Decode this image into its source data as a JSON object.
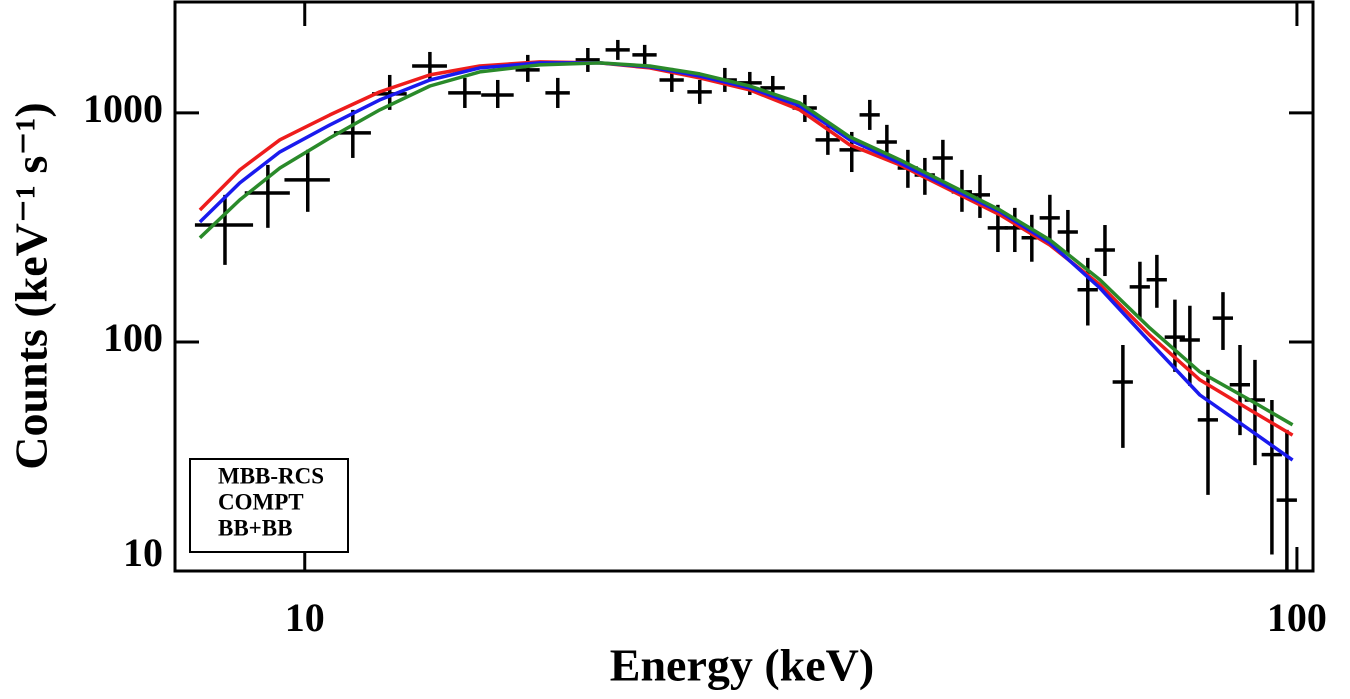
{
  "chart_data": {
    "type": "line",
    "xlabel": "Energy (keV)",
    "ylabel": "Counts (keV⁻¹ s⁻¹)",
    "xscale": "log",
    "yscale": "log",
    "xlim": [
      7.4,
      103.8
    ],
    "ylim": [
      10,
      3050
    ],
    "xticks": [
      10,
      100
    ],
    "yticks": [
      10,
      100,
      1000
    ],
    "legend": "lower left",
    "series": [
      {
        "name": "MBB-RCS",
        "color": "#ee1c1c",
        "x": [
          7.84,
          8.6,
          9.44,
          10.6,
          11.9,
          13.37,
          15.01,
          17.25,
          19.83,
          22.27,
          25.01,
          28.09,
          31.55,
          35.43,
          39.79,
          44.69,
          50.19,
          56.36,
          63.3,
          71.09,
          79.84,
          89.66,
          99
        ],
        "values": [
          377,
          564,
          763,
          980,
          1235,
          1465,
          1603,
          1670,
          1653,
          1572,
          1422,
          1261,
          1031,
          725,
          593,
          461,
          359,
          265,
          178,
          107,
          68.3,
          50.5,
          39.2
        ]
      },
      {
        "name": "COMPT",
        "color": "#1a1aee",
        "x": [
          7.84,
          8.6,
          9.44,
          10.6,
          11.9,
          13.37,
          15.01,
          17.25,
          19.83,
          22.27,
          25.01,
          28.09,
          31.55,
          35.43,
          39.79,
          44.69,
          50.19,
          56.36,
          63.3,
          71.09,
          79.84,
          89.66,
          99
        ],
        "values": [
          334,
          495,
          676,
          887,
          1140,
          1393,
          1572,
          1653,
          1653,
          1588,
          1450,
          1286,
          1073,
          763,
          605,
          471,
          370,
          271,
          172,
          100,
          58.7,
          41.3,
          30.5
        ]
      },
      {
        "name": "BB+BB",
        "color": "#2a8a2a",
        "x": [
          7.84,
          8.6,
          9.44,
          10.6,
          11.9,
          13.37,
          15.01,
          17.25,
          19.83,
          22.27,
          25.01,
          28.09,
          31.55,
          35.43,
          39.79,
          44.69,
          50.19,
          56.36,
          63.3,
          71.09,
          79.84,
          89.66,
          99
        ],
        "values": [
          285,
          417,
          575,
          778,
          1031,
          1311,
          1510,
          1620,
          1653,
          1603,
          1480,
          1311,
          1106,
          786,
          624,
          485,
          377,
          279,
          187,
          115,
          74,
          55.8,
          43.5
        ]
      }
    ],
    "points": {
      "color": "#000000",
      "x": [
        8.31,
        9.18,
        10.07,
        11.18,
        12.18,
        13.37,
        14.5,
        15.65,
        16.78,
        17.99,
        19.29,
        20.68,
        22.01,
        23.44,
        25.01,
        26.51,
        28.09,
        29.63,
        31.92,
        33.67,
        35.59,
        37.11,
        38.61,
        40.54,
        42.17,
        43.97,
        45.96,
        47.92,
        49.96,
        51.96,
        54.05,
        56.36,
        58.77,
        61.55,
        64.05,
        66.77,
        69.46,
        72.25,
        75.34,
        78.0,
        81.35,
        84.23,
        87.62,
        90.72,
        94.36,
        97.7
      ],
      "xerr": [
        0.56,
        0.48,
        0.53,
        0.48,
        0.49,
        0.54,
        0.55,
        0.59,
        0.47,
        0.51,
        0.54,
        0.58,
        0.62,
        0.66,
        0.71,
        0.75,
        0.79,
        0.84,
        0.9,
        0.95,
        1.0,
        0.87,
        0.91,
        0.95,
        0.99,
        1.03,
        1.08,
        1.13,
        1.17,
        1.22,
        1.27,
        1.32,
        1.38,
        1.45,
        1.5,
        1.57,
        1.63,
        1.7,
        1.77,
        1.83,
        1.91,
        1.98,
        2.06,
        2.13,
        2.22,
        2.3
      ],
      "values": [
        324,
        447,
        510,
        818,
        1211,
        1603,
        1223,
        1198,
        1541,
        1223,
        1704,
        1884,
        1792,
        1393,
        1235,
        1393,
        1352,
        1286,
        1051,
        763,
        690,
        980,
        747,
        575,
        536,
        636,
        452,
        439,
        315,
        315,
        285,
        348,
        302,
        169,
        252,
        66.9,
        174,
        187,
        105,
        102,
        45.7,
        127,
        65,
        55.8,
        32.2,
        20.4
      ],
      "y_low": [
        217,
        315,
        370,
        636,
        1031,
        1393,
        1051,
        1051,
        1366,
        1051,
        1510,
        1704,
        1603,
        1235,
        1095,
        1235,
        1198,
        1140,
        913,
        656,
        552,
        843,
        624,
        471,
        439,
        510,
        370,
        348,
        247,
        247,
        224,
        273,
        240,
        118,
        194,
        34.5,
        127,
        141,
        74,
        64.3,
        21.5,
        92.3,
        39.2,
        29.0,
        11.8,
        10
      ],
      "y_high": [
        439,
        593,
        690,
        1031,
        1465,
        1846,
        1422,
        1393,
        1792,
        1422,
        1921,
        2083,
        1982,
        1572,
        1393,
        1572,
        1510,
        1450,
        1198,
        887,
        826,
        1140,
        887,
        690,
        636,
        763,
        564,
        536,
        397,
        385,
        359,
        439,
        377,
        233,
        324,
        97,
        224,
        240,
        153,
        144,
        75.5,
        165,
        97,
        83.5,
        55.8,
        41.3
      ]
    }
  }
}
